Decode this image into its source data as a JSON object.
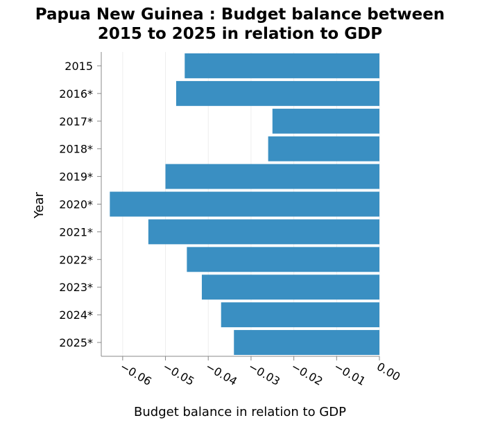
{
  "chart_data": {
    "type": "bar",
    "orientation": "horizontal",
    "title_lines": [
      "Papua New Guinea : Budget balance between",
      "2015 to 2025 in relation to GDP"
    ],
    "xlabel": "Budget balance in relation to GDP",
    "ylabel": "Year",
    "categories": [
      "2015",
      "2016*",
      "2017*",
      "2018*",
      "2019*",
      "2020*",
      "2021*",
      "2022*",
      "2023*",
      "2024*",
      "2025*"
    ],
    "values": [
      -0.0455,
      -0.0475,
      -0.025,
      -0.026,
      -0.05,
      -0.063,
      -0.054,
      -0.045,
      -0.0415,
      -0.037,
      -0.034
    ],
    "xlim": [
      -0.065,
      0.0
    ],
    "xticks": [
      -0.06,
      -0.05,
      -0.04,
      -0.03,
      -0.02,
      -0.01,
      0.0
    ],
    "xtick_labels": [
      "−0.06",
      "−0.05",
      "−0.04",
      "−0.03",
      "−0.02",
      "−0.01",
      "0.00"
    ],
    "grid": "vertical",
    "bar_color": "#3a8fc2",
    "grid_color": "#eeeeee",
    "axis_color": "#888888"
  }
}
